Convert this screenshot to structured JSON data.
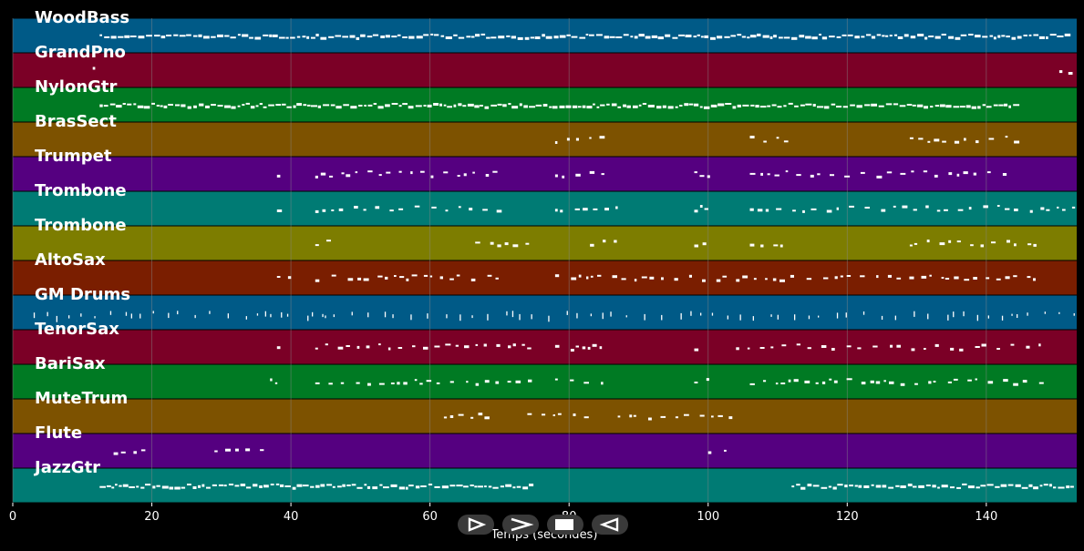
{
  "axis": {
    "xlabel": "Temps (secondes)",
    "xlim": [
      0,
      153
    ],
    "ticks": [
      0,
      20,
      40,
      60,
      80,
      100,
      120,
      140
    ],
    "tick_labels": [
      "0",
      "20",
      "40",
      "60",
      "80",
      "100",
      "120",
      "140"
    ]
  },
  "tracks": [
    {
      "name": "WoodBass",
      "color": "#005a87"
    },
    {
      "name": "GrandPno",
      "color": "#7b0026"
    },
    {
      "name": "NylonGtr",
      "color": "#007a23"
    },
    {
      "name": "BrasSect",
      "color": "#7d5200"
    },
    {
      "name": "Trumpet",
      "color": "#550080"
    },
    {
      "name": "Trombone",
      "color": "#007b74"
    },
    {
      "name": "Trombone",
      "color": "#7d7d00"
    },
    {
      "name": "AltoSax",
      "color": "#7a1e00"
    },
    {
      "name": "GM Drums",
      "color": "#005a87"
    },
    {
      "name": "TenorSax",
      "color": "#7b0026"
    },
    {
      "name": "BariSax",
      "color": "#007a23"
    },
    {
      "name": "MuteTrum",
      "color": "#7d5200"
    },
    {
      "name": "Flute",
      "color": "#550080"
    },
    {
      "name": "JazzGtr",
      "color": "#007b74"
    }
  ],
  "note_spans": [
    [
      [
        12.5,
        151.5,
        "d"
      ]
    ],
    [
      [
        11.5,
        12.5,
        "s"
      ],
      [
        150.5,
        153,
        "s"
      ]
    ],
    [
      [
        12.5,
        144.5,
        "d"
      ]
    ],
    [
      [
        78,
        85,
        "s"
      ],
      [
        106,
        111,
        "s"
      ],
      [
        129,
        144,
        "s"
      ]
    ],
    [
      [
        38,
        39,
        "s"
      ],
      [
        43.5,
        70,
        "s"
      ],
      [
        78,
        85,
        "s"
      ],
      [
        98,
        100,
        "s"
      ],
      [
        106,
        144,
        "s"
      ]
    ],
    [
      [
        38,
        39,
        "s"
      ],
      [
        43.5,
        70,
        "s"
      ],
      [
        78,
        87,
        "s"
      ],
      [
        98,
        100,
        "s"
      ],
      [
        106,
        153,
        "s"
      ]
    ],
    [
      [
        43.5,
        46,
        "s"
      ],
      [
        66.5,
        75,
        "s"
      ],
      [
        83,
        87,
        "s"
      ],
      [
        98,
        100,
        "s"
      ],
      [
        106,
        111,
        "s"
      ],
      [
        129,
        148,
        "s"
      ]
    ],
    [
      [
        38,
        40,
        "s"
      ],
      [
        43.5,
        70,
        "s"
      ],
      [
        78,
        103,
        "s"
      ],
      [
        104,
        148,
        "s"
      ]
    ],
    [
      [
        3,
        45,
        "p"
      ],
      [
        43,
        153,
        "p"
      ]
    ],
    [
      [
        38,
        39,
        "s"
      ],
      [
        43.5,
        75,
        "s"
      ],
      [
        78,
        85,
        "s"
      ],
      [
        98,
        100,
        "s"
      ],
      [
        104,
        148,
        "s"
      ]
    ],
    [
      [
        37,
        38,
        "s"
      ],
      [
        43.5,
        75,
        "s"
      ],
      [
        78,
        85,
        "s"
      ],
      [
        98,
        100,
        "s"
      ],
      [
        106,
        148,
        "s"
      ]
    ],
    [
      [
        62,
        70,
        "s"
      ],
      [
        74,
        83,
        "s"
      ],
      [
        87,
        103,
        "s"
      ]
    ],
    [
      [
        14.5,
        20,
        "s"
      ],
      [
        29,
        37,
        "s"
      ],
      [
        100,
        103,
        "s"
      ]
    ],
    [
      [
        12.5,
        75,
        "d"
      ],
      [
        112,
        153,
        "d"
      ]
    ]
  ],
  "controls": [
    {
      "name": "play-button",
      "icon": "play-icon"
    },
    {
      "name": "fast-forward-button",
      "icon": "forward-icon"
    },
    {
      "name": "stop-button",
      "icon": "stop-icon"
    },
    {
      "name": "rewind-button",
      "icon": "rewind-icon"
    }
  ],
  "colors": {
    "background": "#000000",
    "note": "#ffffff",
    "grid": "#888888",
    "label": "#ffffff"
  }
}
